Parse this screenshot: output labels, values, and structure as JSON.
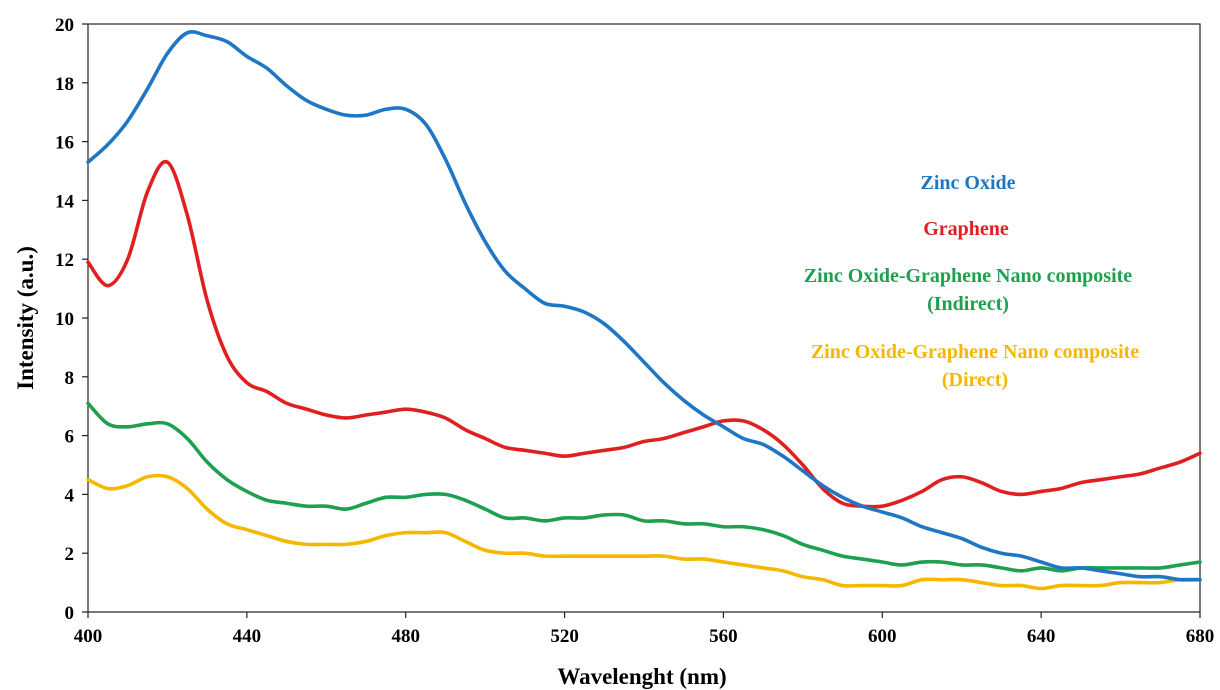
{
  "chart_data": {
    "type": "line",
    "title": "",
    "xlabel": "Wavelenght (nm)",
    "ylabel": "Intensity (a.u.)",
    "xlim": [
      400,
      680
    ],
    "ylim": [
      0,
      20
    ],
    "x_ticks": [
      400,
      440,
      480,
      520,
      560,
      600,
      640,
      680
    ],
    "y_ticks": [
      0,
      2,
      4,
      6,
      8,
      10,
      12,
      14,
      16,
      18,
      20
    ],
    "grid": false,
    "legend_position": "right",
    "series": [
      {
        "name": "Zinc Oxide",
        "color": "#1f77c4",
        "legend_lines": [
          "Zinc Oxide"
        ],
        "points": [
          [
            400,
            15.3
          ],
          [
            405,
            15.9
          ],
          [
            410,
            16.7
          ],
          [
            415,
            17.8
          ],
          [
            420,
            19.0
          ],
          [
            425,
            19.7
          ],
          [
            430,
            19.6
          ],
          [
            435,
            19.4
          ],
          [
            440,
            18.9
          ],
          [
            445,
            18.5
          ],
          [
            450,
            17.9
          ],
          [
            455,
            17.4
          ],
          [
            460,
            17.1
          ],
          [
            465,
            16.9
          ],
          [
            470,
            16.9
          ],
          [
            475,
            17.1
          ],
          [
            480,
            17.1
          ],
          [
            485,
            16.6
          ],
          [
            490,
            15.4
          ],
          [
            495,
            13.9
          ],
          [
            500,
            12.6
          ],
          [
            505,
            11.6
          ],
          [
            510,
            11.0
          ],
          [
            515,
            10.5
          ],
          [
            520,
            10.4
          ],
          [
            525,
            10.2
          ],
          [
            530,
            9.8
          ],
          [
            535,
            9.2
          ],
          [
            540,
            8.5
          ],
          [
            545,
            7.8
          ],
          [
            550,
            7.2
          ],
          [
            555,
            6.7
          ],
          [
            560,
            6.3
          ],
          [
            565,
            5.9
          ],
          [
            570,
            5.7
          ],
          [
            575,
            5.3
          ],
          [
            580,
            4.8
          ],
          [
            585,
            4.3
          ],
          [
            590,
            3.9
          ],
          [
            595,
            3.6
          ],
          [
            600,
            3.4
          ],
          [
            605,
            3.2
          ],
          [
            610,
            2.9
          ],
          [
            615,
            2.7
          ],
          [
            620,
            2.5
          ],
          [
            625,
            2.2
          ],
          [
            630,
            2.0
          ],
          [
            635,
            1.9
          ],
          [
            640,
            1.7
          ],
          [
            645,
            1.5
          ],
          [
            650,
            1.5
          ],
          [
            655,
            1.4
          ],
          [
            660,
            1.3
          ],
          [
            665,
            1.2
          ],
          [
            670,
            1.2
          ],
          [
            675,
            1.1
          ],
          [
            680,
            1.1
          ]
        ]
      },
      {
        "name": "Graphene",
        "color": "#e02020",
        "legend_lines": [
          "Graphene"
        ],
        "points": [
          [
            400,
            11.9
          ],
          [
            405,
            11.1
          ],
          [
            410,
            12.0
          ],
          [
            415,
            14.3
          ],
          [
            420,
            15.3
          ],
          [
            425,
            13.5
          ],
          [
            430,
            10.6
          ],
          [
            435,
            8.7
          ],
          [
            440,
            7.8
          ],
          [
            445,
            7.5
          ],
          [
            450,
            7.1
          ],
          [
            455,
            6.9
          ],
          [
            460,
            6.7
          ],
          [
            465,
            6.6
          ],
          [
            470,
            6.7
          ],
          [
            475,
            6.8
          ],
          [
            480,
            6.9
          ],
          [
            485,
            6.8
          ],
          [
            490,
            6.6
          ],
          [
            495,
            6.2
          ],
          [
            500,
            5.9
          ],
          [
            505,
            5.6
          ],
          [
            510,
            5.5
          ],
          [
            515,
            5.4
          ],
          [
            520,
            5.3
          ],
          [
            525,
            5.4
          ],
          [
            530,
            5.5
          ],
          [
            535,
            5.6
          ],
          [
            540,
            5.8
          ],
          [
            545,
            5.9
          ],
          [
            550,
            6.1
          ],
          [
            555,
            6.3
          ],
          [
            560,
            6.5
          ],
          [
            565,
            6.5
          ],
          [
            570,
            6.2
          ],
          [
            575,
            5.7
          ],
          [
            580,
            5.0
          ],
          [
            585,
            4.2
          ],
          [
            590,
            3.7
          ],
          [
            595,
            3.6
          ],
          [
            600,
            3.6
          ],
          [
            605,
            3.8
          ],
          [
            610,
            4.1
          ],
          [
            615,
            4.5
          ],
          [
            620,
            4.6
          ],
          [
            625,
            4.4
          ],
          [
            630,
            4.1
          ],
          [
            635,
            4.0
          ],
          [
            640,
            4.1
          ],
          [
            645,
            4.2
          ],
          [
            650,
            4.4
          ],
          [
            655,
            4.5
          ],
          [
            660,
            4.6
          ],
          [
            665,
            4.7
          ],
          [
            670,
            4.9
          ],
          [
            675,
            5.1
          ],
          [
            680,
            5.4
          ]
        ]
      },
      {
        "name": "Zinc Oxide-Graphene Nano composite (Indirect)",
        "color": "#1fa050",
        "legend_lines": [
          "Zinc Oxide-Graphene Nano composite",
          "(Indirect)"
        ],
        "points": [
          [
            400,
            7.1
          ],
          [
            405,
            6.4
          ],
          [
            410,
            6.3
          ],
          [
            415,
            6.4
          ],
          [
            420,
            6.4
          ],
          [
            425,
            5.9
          ],
          [
            430,
            5.1
          ],
          [
            435,
            4.5
          ],
          [
            440,
            4.1
          ],
          [
            445,
            3.8
          ],
          [
            450,
            3.7
          ],
          [
            455,
            3.6
          ],
          [
            460,
            3.6
          ],
          [
            465,
            3.5
          ],
          [
            470,
            3.7
          ],
          [
            475,
            3.9
          ],
          [
            480,
            3.9
          ],
          [
            485,
            4.0
          ],
          [
            490,
            4.0
          ],
          [
            495,
            3.8
          ],
          [
            500,
            3.5
          ],
          [
            505,
            3.2
          ],
          [
            510,
            3.2
          ],
          [
            515,
            3.1
          ],
          [
            520,
            3.2
          ],
          [
            525,
            3.2
          ],
          [
            530,
            3.3
          ],
          [
            535,
            3.3
          ],
          [
            540,
            3.1
          ],
          [
            545,
            3.1
          ],
          [
            550,
            3.0
          ],
          [
            555,
            3.0
          ],
          [
            560,
            2.9
          ],
          [
            565,
            2.9
          ],
          [
            570,
            2.8
          ],
          [
            575,
            2.6
          ],
          [
            580,
            2.3
          ],
          [
            585,
            2.1
          ],
          [
            590,
            1.9
          ],
          [
            595,
            1.8
          ],
          [
            600,
            1.7
          ],
          [
            605,
            1.6
          ],
          [
            610,
            1.7
          ],
          [
            615,
            1.7
          ],
          [
            620,
            1.6
          ],
          [
            625,
            1.6
          ],
          [
            630,
            1.5
          ],
          [
            635,
            1.4
          ],
          [
            640,
            1.5
          ],
          [
            645,
            1.4
          ],
          [
            650,
            1.5
          ],
          [
            655,
            1.5
          ],
          [
            660,
            1.5
          ],
          [
            665,
            1.5
          ],
          [
            670,
            1.5
          ],
          [
            675,
            1.6
          ],
          [
            680,
            1.7
          ]
        ]
      },
      {
        "name": "Zinc Oxide-Graphene Nano composite (Direct)",
        "color": "#f5b800",
        "legend_lines": [
          "Zinc Oxide-Graphene Nano composite",
          "(Direct)"
        ],
        "points": [
          [
            400,
            4.5
          ],
          [
            405,
            4.2
          ],
          [
            410,
            4.3
          ],
          [
            415,
            4.6
          ],
          [
            420,
            4.6
          ],
          [
            425,
            4.2
          ],
          [
            430,
            3.5
          ],
          [
            435,
            3.0
          ],
          [
            440,
            2.8
          ],
          [
            445,
            2.6
          ],
          [
            450,
            2.4
          ],
          [
            455,
            2.3
          ],
          [
            460,
            2.3
          ],
          [
            465,
            2.3
          ],
          [
            470,
            2.4
          ],
          [
            475,
            2.6
          ],
          [
            480,
            2.7
          ],
          [
            485,
            2.7
          ],
          [
            490,
            2.7
          ],
          [
            495,
            2.4
          ],
          [
            500,
            2.1
          ],
          [
            505,
            2.0
          ],
          [
            510,
            2.0
          ],
          [
            515,
            1.9
          ],
          [
            520,
            1.9
          ],
          [
            525,
            1.9
          ],
          [
            530,
            1.9
          ],
          [
            535,
            1.9
          ],
          [
            540,
            1.9
          ],
          [
            545,
            1.9
          ],
          [
            550,
            1.8
          ],
          [
            555,
            1.8
          ],
          [
            560,
            1.7
          ],
          [
            565,
            1.6
          ],
          [
            570,
            1.5
          ],
          [
            575,
            1.4
          ],
          [
            580,
            1.2
          ],
          [
            585,
            1.1
          ],
          [
            590,
            0.9
          ],
          [
            595,
            0.9
          ],
          [
            600,
            0.9
          ],
          [
            605,
            0.9
          ],
          [
            610,
            1.1
          ],
          [
            615,
            1.1
          ],
          [
            620,
            1.1
          ],
          [
            625,
            1.0
          ],
          [
            630,
            0.9
          ],
          [
            635,
            0.9
          ],
          [
            640,
            0.8
          ],
          [
            645,
            0.9
          ],
          [
            650,
            0.9
          ],
          [
            655,
            0.9
          ],
          [
            660,
            1.0
          ],
          [
            665,
            1.0
          ],
          [
            670,
            1.0
          ],
          [
            675,
            1.1
          ],
          [
            680,
            1.1
          ]
        ]
      }
    ]
  }
}
